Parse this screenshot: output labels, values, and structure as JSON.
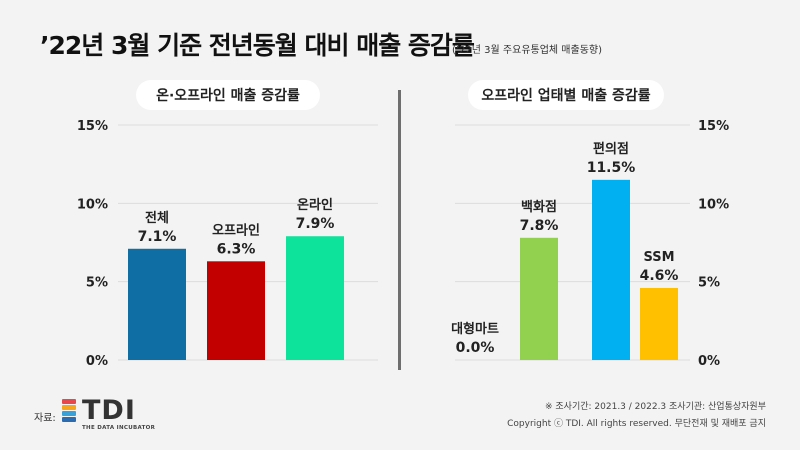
{
  "title": "’22년 3월 기준 전년동월 대비 매출 증감률",
  "subtitle": "(’22년 3월 주요유통업체 매출동향)",
  "footer": {
    "source_label": "자료:",
    "logo_text": "TDI",
    "logo_tagline": "THE DATA INCUBATOR",
    "note_line1": "※ 조사기간: 2021.3 / 2022.3   조사기관: 산업통상자원부",
    "note_line2": "Copyright ⓒ TDI. All rights reserved. 무단전재 및 재배포 금지"
  },
  "chart_data": [
    {
      "type": "bar",
      "title": "온·오프라인 매출 증감률",
      "categories": [
        "전체",
        "오프라인",
        "온라인"
      ],
      "values": [
        7.1,
        6.3,
        7.9
      ],
      "value_labels": [
        "7.1%",
        "6.3%",
        "7.9%"
      ],
      "colors": [
        "#0f6ea4",
        "#c20000",
        "#0ee39b"
      ],
      "ylim": [
        0,
        15
      ],
      "yticks": [
        0,
        5,
        10,
        15
      ],
      "ytick_labels": [
        "0%",
        "5%",
        "10%",
        "15%"
      ],
      "yaxis_side": "left",
      "grid": true
    },
    {
      "type": "bar",
      "title": "오프라인 업태별 매출 증감률",
      "categories": [
        "대형마트",
        "백화점",
        "편의점",
        "SSM"
      ],
      "values": [
        0.0,
        7.8,
        11.5,
        4.6
      ],
      "value_labels": [
        "0.0%",
        "7.8%",
        "11.5%",
        "4.6%"
      ],
      "colors": [
        "#4fa0c8",
        "#92d050",
        "#00b0f0",
        "#ffc000"
      ],
      "ylim": [
        0,
        15
      ],
      "yticks": [
        0,
        5,
        10,
        15
      ],
      "ytick_labels": [
        "0%",
        "5%",
        "10%",
        "15%"
      ],
      "yaxis_side": "right",
      "grid": true
    }
  ]
}
